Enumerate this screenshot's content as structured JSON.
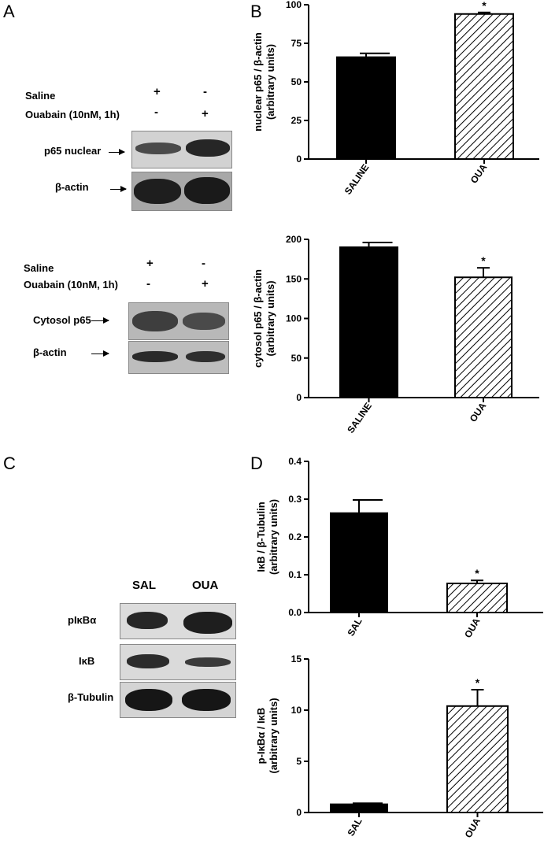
{
  "panels": {
    "A": {
      "letter": "A",
      "nuclear": {
        "saline_label": "Saline",
        "ouabain_label": "Ouabain (10nM, 1h)",
        "saline_marks": [
          "+",
          "-"
        ],
        "ouabain_marks": [
          "-",
          "+"
        ],
        "row1_label": "p65 nuclear",
        "row2_label": "β-actin"
      },
      "cytosol": {
        "saline_label": "Saline",
        "ouabain_label": "Ouabain (10nM, 1h)",
        "saline_marks": [
          "+",
          "-"
        ],
        "ouabain_marks": [
          "-",
          "+"
        ],
        "row1_label": "Cytosol p65",
        "row2_label": "β-actin"
      }
    },
    "B": {
      "letter": "B"
    },
    "C": {
      "letter": "C",
      "lane1": "SAL",
      "lane2": "OUA",
      "row1_label": "pIκBα",
      "row2_label": "IκB",
      "row3_label": "β-Tubulin"
    },
    "D": {
      "letter": "D"
    }
  },
  "chart_data": [
    {
      "type": "bar",
      "categories": [
        "SALINE",
        "OUA"
      ],
      "values": [
        66,
        94
      ],
      "errors": [
        2.5,
        1
      ],
      "significance": [
        "",
        "*"
      ],
      "ylabel": [
        "nuclear p65 / β-actin",
        "(arbitrary units)"
      ],
      "ylim": [
        0,
        100
      ],
      "yticks": [
        "0",
        "25",
        "50",
        "75",
        "100"
      ],
      "tick_values": [
        0,
        25,
        50,
        75,
        100
      ]
    },
    {
      "type": "bar",
      "categories": [
        "SALINE",
        "OUA"
      ],
      "values": [
        190,
        152
      ],
      "errors": [
        6,
        12
      ],
      "significance": [
        "",
        "*"
      ],
      "ylabel": [
        "cytosol p65 / β-actin",
        "(arbitrary units)"
      ],
      "ylim": [
        0,
        200
      ],
      "yticks": [
        "0",
        "50",
        "100",
        "150",
        "200"
      ],
      "tick_values": [
        0,
        50,
        100,
        150,
        200
      ]
    },
    {
      "type": "bar",
      "categories": [
        "SAL",
        "OUA"
      ],
      "values": [
        0.263,
        0.077
      ],
      "errors": [
        0.035,
        0.008
      ],
      "significance": [
        "",
        "*"
      ],
      "ylabel": [
        "IκB / β-Tubulin",
        "(arbitrary units)"
      ],
      "ylim": [
        0,
        0.4
      ],
      "yticks": [
        "0.0",
        "0.1",
        "0.2",
        "0.3",
        "0.4"
      ],
      "tick_values": [
        0,
        0.1,
        0.2,
        0.3,
        0.4
      ]
    },
    {
      "type": "bar",
      "categories": [
        "SAL",
        "OUA"
      ],
      "values": [
        0.8,
        10.4
      ],
      "errors": [
        0.1,
        1.6
      ],
      "significance": [
        "",
        "*"
      ],
      "ylabel": [
        "p-IκBα / IκB",
        "(arbitrary units)"
      ],
      "ylim": [
        0,
        15
      ],
      "yticks": [
        "0",
        "5",
        "10",
        "15"
      ],
      "tick_values": [
        0,
        5,
        10,
        15
      ]
    }
  ]
}
